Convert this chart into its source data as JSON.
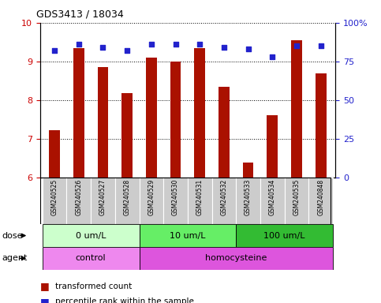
{
  "title": "GDS3413 / 18034",
  "samples": [
    "GSM240525",
    "GSM240526",
    "GSM240527",
    "GSM240528",
    "GSM240529",
    "GSM240530",
    "GSM240531",
    "GSM240532",
    "GSM240533",
    "GSM240534",
    "GSM240535",
    "GSM240848"
  ],
  "transformed_count": [
    7.22,
    9.35,
    8.85,
    8.18,
    9.1,
    9.0,
    9.35,
    8.35,
    6.38,
    7.6,
    9.55,
    8.68
  ],
  "percentile_rank": [
    82,
    86,
    84,
    82,
    86,
    86,
    86,
    84,
    83,
    78,
    85,
    85
  ],
  "ylim_left": [
    6,
    10
  ],
  "ylim_right": [
    0,
    100
  ],
  "yticks_left": [
    6,
    7,
    8,
    9,
    10
  ],
  "yticks_right": [
    0,
    25,
    50,
    75,
    100
  ],
  "bar_color": "#AA1100",
  "dot_color": "#2222CC",
  "sample_bg_color": "#CCCCCC",
  "plot_bg": "#FFFFFF",
  "dose_groups": [
    {
      "label": "0 um/L",
      "start": 0,
      "end": 4,
      "color": "#CCFFCC"
    },
    {
      "label": "10 um/L",
      "start": 4,
      "end": 8,
      "color": "#66EE66"
    },
    {
      "label": "100 um/L",
      "start": 8,
      "end": 12,
      "color": "#33BB33"
    }
  ],
  "agent_groups": [
    {
      "label": "control",
      "start": 0,
      "end": 4,
      "color": "#EE88EE"
    },
    {
      "label": "homocysteine",
      "start": 4,
      "end": 12,
      "color": "#DD55DD"
    }
  ],
  "dose_label": "dose",
  "agent_label": "agent",
  "legend_red": "transformed count",
  "legend_blue": "percentile rank within the sample",
  "grid_color": "#000000",
  "label_color_left": "#CC0000",
  "label_color_right": "#2222CC",
  "bar_width": 0.45
}
